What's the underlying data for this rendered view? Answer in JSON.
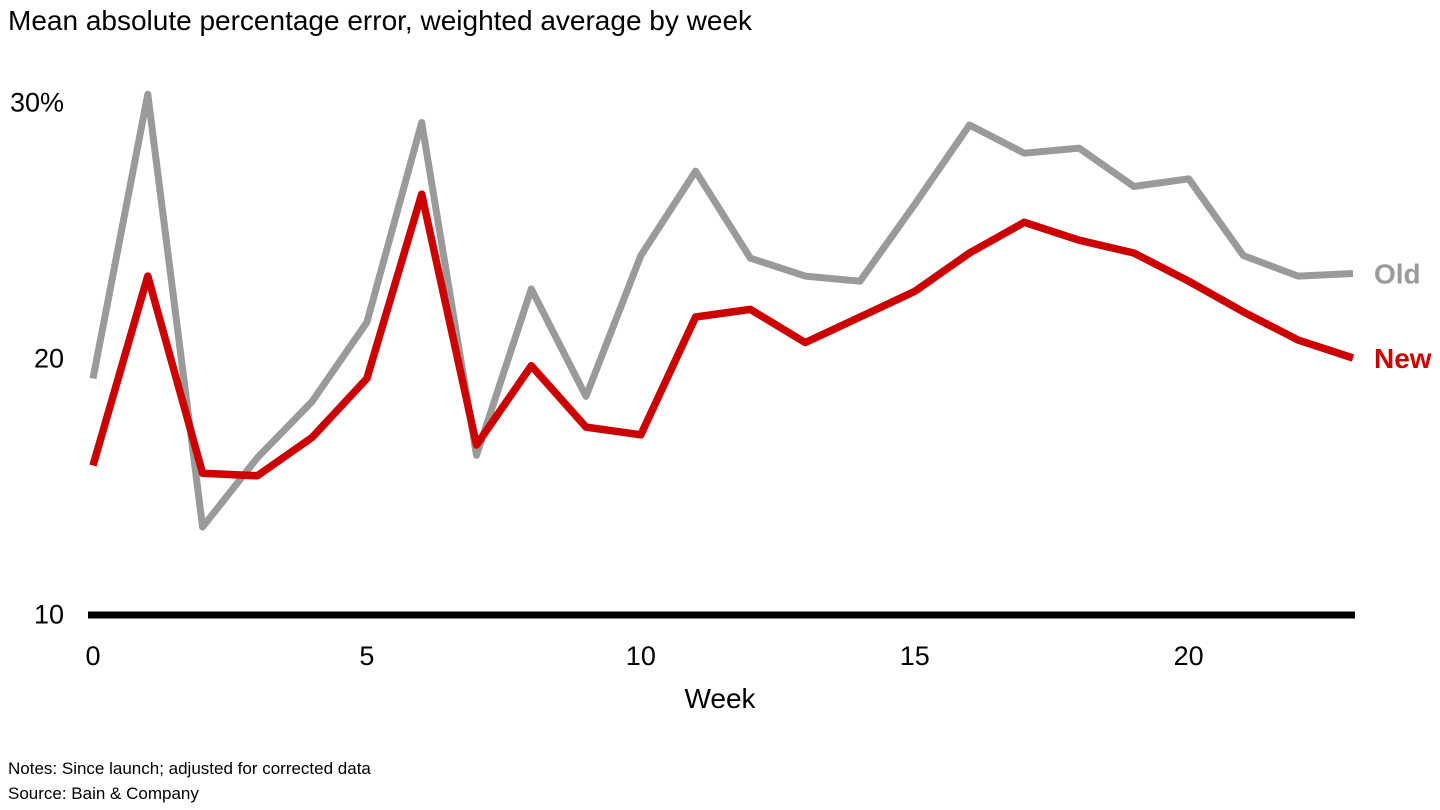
{
  "title": "Mean absolute percentage error, weighted average by week",
  "notes": "Notes: Since launch; adjusted for corrected data",
  "source": "Source: Bain & Company",
  "colors": {
    "old_series": "#9a9a9a",
    "new_series": "#cc0000",
    "axis": "#000000",
    "text": "#000000"
  },
  "chart_data": {
    "type": "line",
    "title": "Mean absolute percentage error, weighted average by week",
    "xlabel": "Week",
    "ylabel": "",
    "x": [
      0,
      1,
      2,
      3,
      4,
      5,
      6,
      7,
      8,
      9,
      10,
      11,
      12,
      13,
      14,
      15,
      16,
      17,
      18,
      19,
      20,
      21,
      22,
      23
    ],
    "series": [
      {
        "name": "Old",
        "color": "#9a9a9a",
        "values": [
          19.2,
          30.3,
          13.4,
          16.1,
          18.3,
          21.4,
          29.2,
          16.2,
          22.7,
          18.5,
          24.0,
          27.3,
          23.9,
          23.2,
          23.0,
          26.0,
          29.1,
          28.0,
          28.2,
          26.7,
          27.0,
          24.0,
          23.2,
          23.3
        ]
      },
      {
        "name": "New",
        "color": "#cc0000",
        "values": [
          15.8,
          23.2,
          15.5,
          15.4,
          16.9,
          19.2,
          26.4,
          16.6,
          19.7,
          17.3,
          17.0,
          21.6,
          21.9,
          20.6,
          21.6,
          22.6,
          24.1,
          25.3,
          24.6,
          24.1,
          23.0,
          21.8,
          20.7,
          20.0
        ]
      }
    ],
    "x_ticks": [
      0,
      5,
      10,
      15,
      20
    ],
    "y_ticks": [
      {
        "value": 10,
        "label": "10"
      },
      {
        "value": 20,
        "label": "20"
      },
      {
        "value": 30,
        "label": "30%"
      }
    ],
    "xlim": [
      0,
      23
    ],
    "ylim": [
      10,
      30.5
    ],
    "grid": false,
    "legend_position": "line-end-labels"
  }
}
